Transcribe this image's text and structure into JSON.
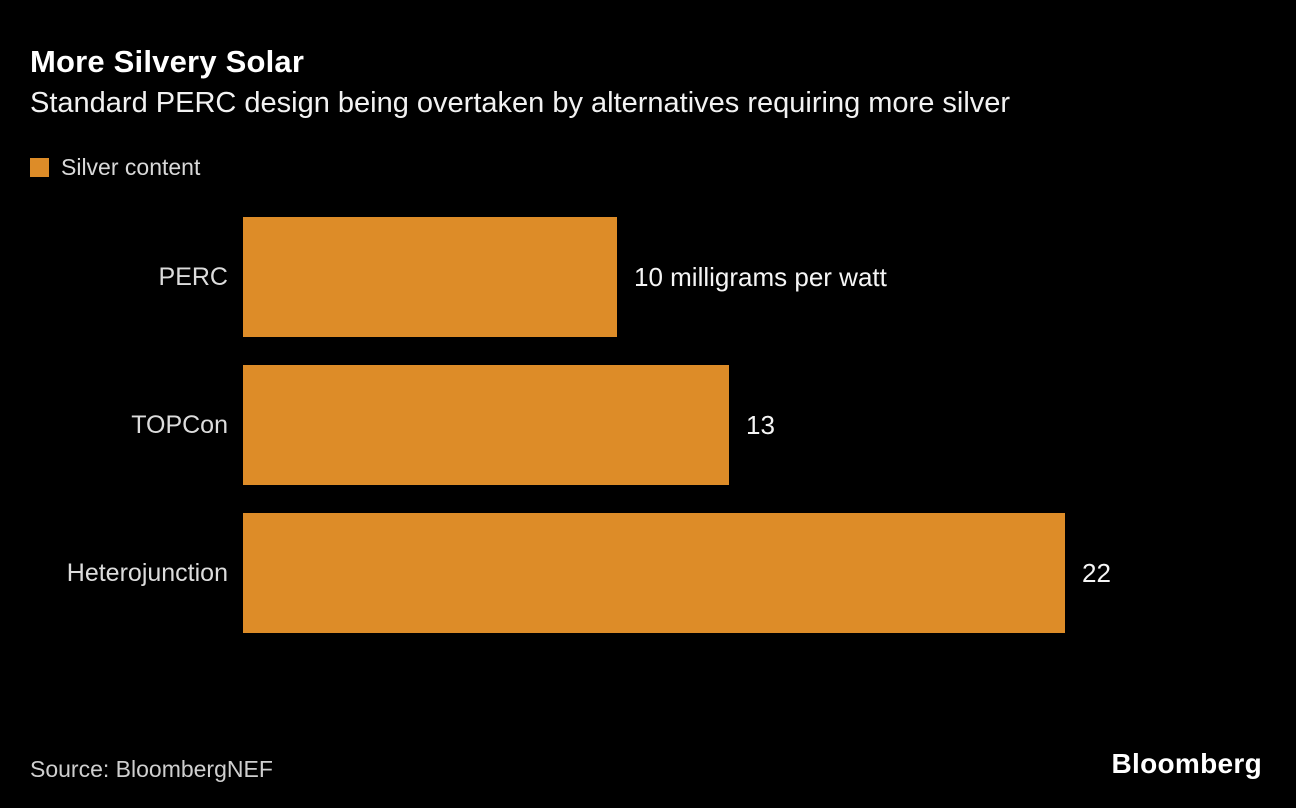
{
  "header": {
    "title": "More Silvery Solar",
    "subtitle": "Standard PERC design being overtaken by alternatives requiring more silver"
  },
  "legend": {
    "label": "Silver content",
    "swatch_color": "#dd8c28"
  },
  "chart_data": {
    "type": "bar",
    "orientation": "horizontal",
    "title": "More Silvery Solar",
    "subtitle": "Standard PERC design being overtaken by alternatives requiring more silver",
    "series_name": "Silver content",
    "categories": [
      "PERC",
      "TOPCon",
      "Heterojunction"
    ],
    "values": [
      10,
      13,
      22
    ],
    "value_labels": [
      "10 milligrams per watt",
      "13",
      "22"
    ],
    "unit": "milligrams per watt",
    "bar_color": "#dd8c28",
    "xlim": [
      0,
      22
    ],
    "grid": false,
    "legend_position": "top-left"
  },
  "footer": {
    "source": "Source: BloombergNEF",
    "brand": "Bloomberg"
  }
}
